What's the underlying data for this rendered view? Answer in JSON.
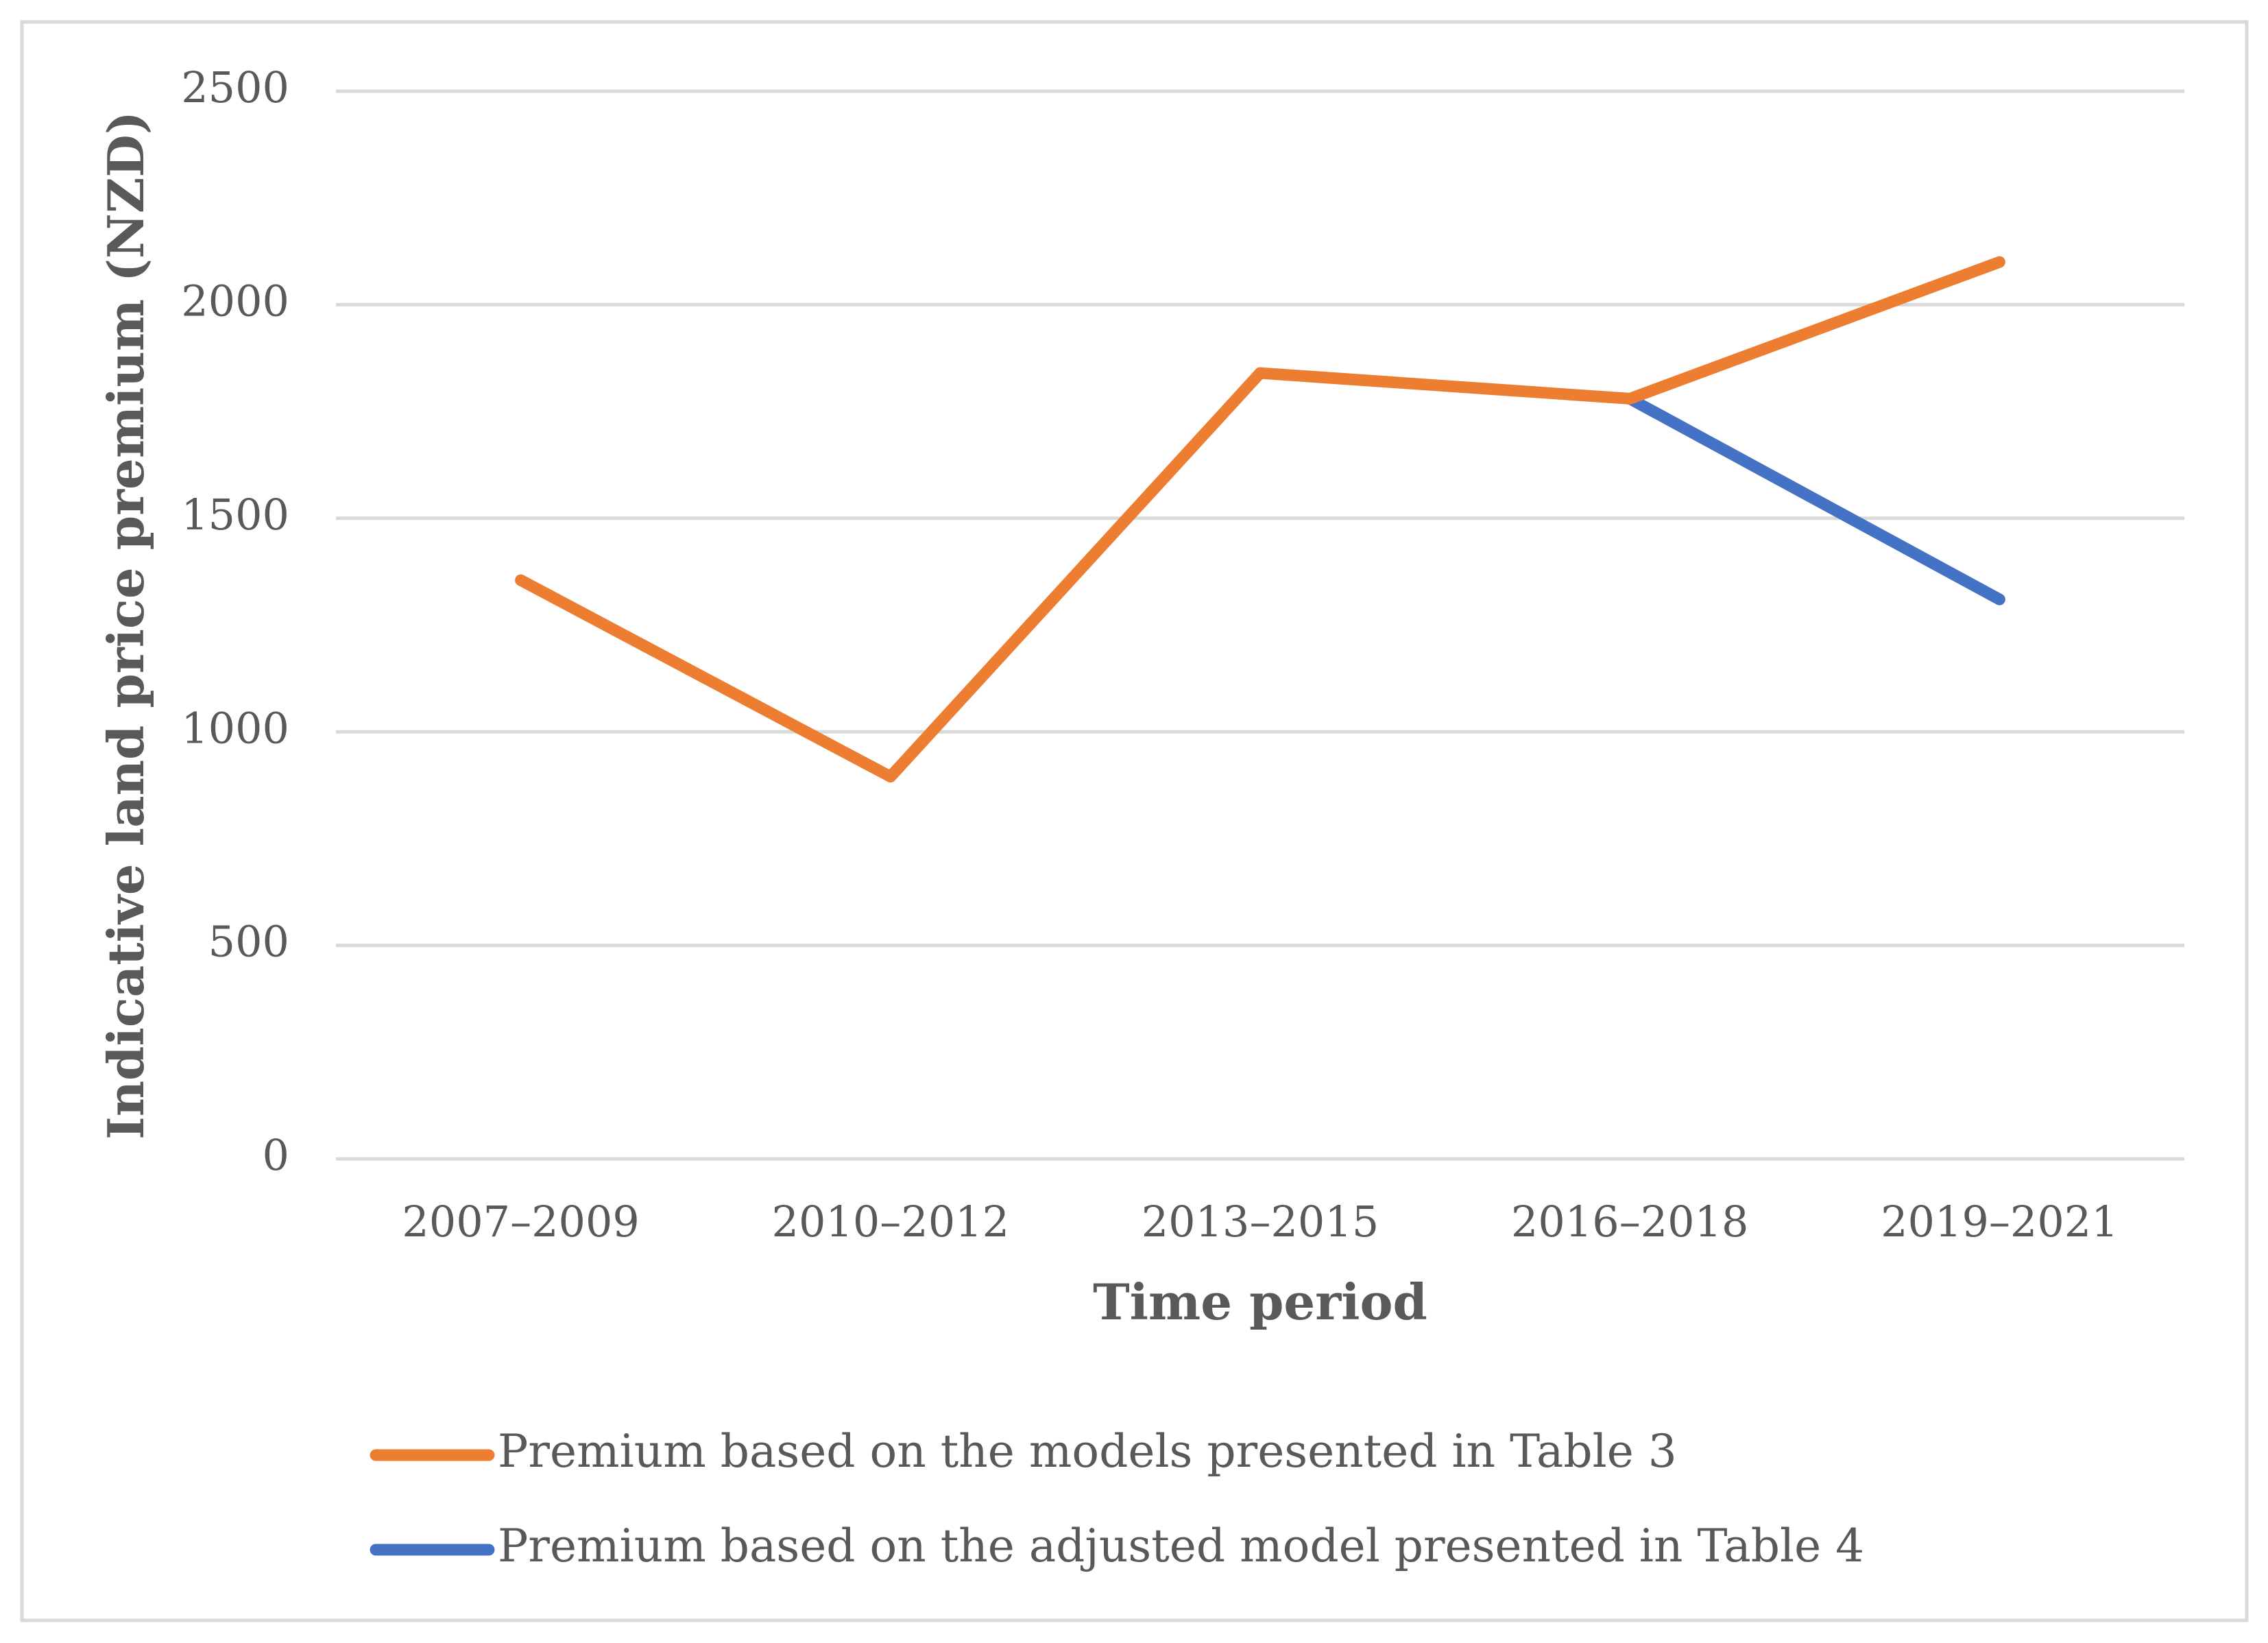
{
  "chart_data": {
    "type": "line",
    "x_label": "Time period",
    "y_label": "Indicative land price premium (NZD)",
    "categories": [
      "2007–2009",
      "2010–2012",
      "2013–2015",
      "2016–2018",
      "2019–2021"
    ],
    "series": [
      {
        "name": "Premium based on the models presented in Table 3",
        "color": "#ed7d31",
        "values": [
          1355,
          895,
          1840,
          1780,
          2100
        ]
      },
      {
        "name": "Premium based on the adjusted model presented in Table 4",
        "color": "#4472c4",
        "values": [
          null,
          null,
          null,
          1780,
          1310
        ]
      }
    ],
    "ylim": [
      0,
      2500
    ],
    "yticks": [
      0,
      500,
      1000,
      1500,
      2000,
      2500
    ],
    "grid": true,
    "legend": "bottom"
  }
}
